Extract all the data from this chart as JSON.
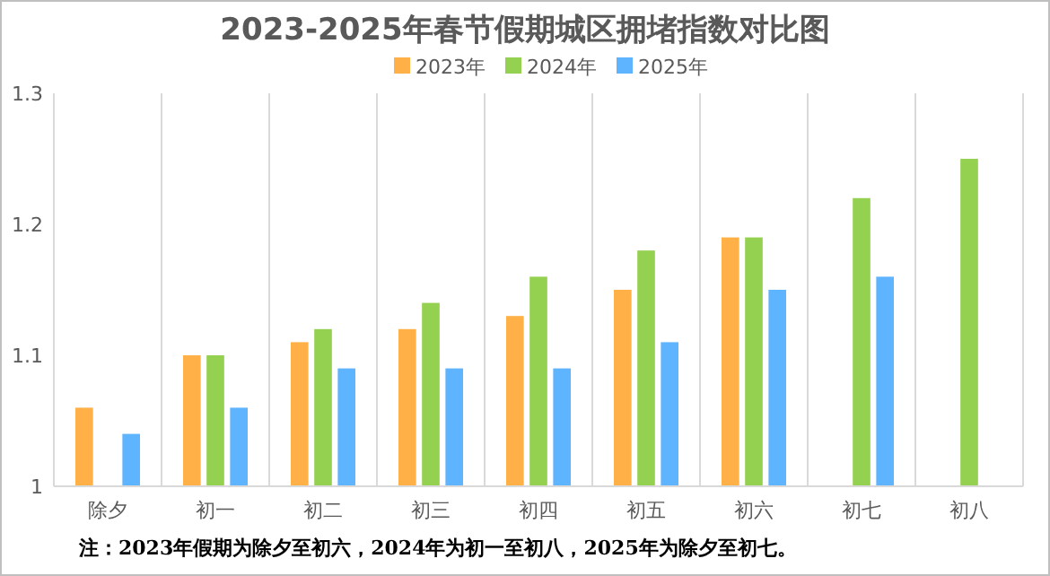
{
  "chart_data": {
    "type": "bar",
    "title": "2023-2025年春节假期城区拥堵指数对比图",
    "categories": [
      "除夕",
      "初一",
      "初二",
      "初三",
      "初四",
      "初五",
      "初六",
      "初七",
      "初八"
    ],
    "series": [
      {
        "name": "2023年",
        "color": "#ffb047",
        "values": [
          1.06,
          1.1,
          1.11,
          1.12,
          1.13,
          1.15,
          1.19,
          null,
          null
        ]
      },
      {
        "name": "2024年",
        "color": "#95d150",
        "values": [
          null,
          1.1,
          1.12,
          1.14,
          1.16,
          1.18,
          1.19,
          1.22,
          1.25
        ]
      },
      {
        "name": "2025年",
        "color": "#5eb4ff",
        "values": [
          1.04,
          1.06,
          1.09,
          1.09,
          1.09,
          1.11,
          1.15,
          1.16,
          null
        ]
      }
    ],
    "ylim": [
      1,
      1.3
    ],
    "yticks": [
      1,
      1.1,
      1.2,
      1.3
    ],
    "grid": "x",
    "legend": "top",
    "annotations": [
      "注：2023年假期为除夕至初六，2024年为初一至初八，2025年为除夕至初七。"
    ]
  }
}
